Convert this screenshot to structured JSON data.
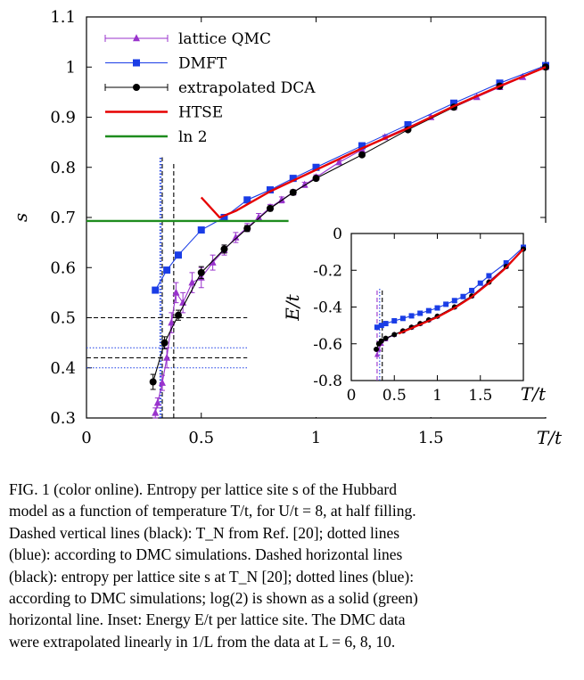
{
  "chart_data": [
    {
      "type": "line",
      "title": "",
      "xlabel": "T/t",
      "ylabel": "s",
      "xlim": [
        0,
        2
      ],
      "ylim": [
        0.3,
        1.1
      ],
      "xticks": [
        "0",
        "0.5",
        "1",
        "1.5"
      ],
      "yticks": [
        "0.3",
        "0.4",
        "0.5",
        "0.6",
        "0.7",
        "0.8",
        "0.9",
        "1",
        "1.1"
      ],
      "legend_position": "top-left",
      "series": [
        {
          "name": "lattice QMC",
          "color": "#9933cc",
          "marker": "triangle",
          "x": [
            0.3,
            0.31,
            0.33,
            0.35,
            0.37,
            0.39,
            0.42,
            0.46,
            0.5,
            0.55,
            0.6,
            0.65,
            0.7,
            0.75,
            0.8,
            0.85,
            0.9,
            0.95,
            1.0,
            1.1,
            1.2,
            1.3,
            1.4,
            1.5,
            1.6,
            1.7,
            1.8,
            1.9,
            2.0
          ],
          "y": [
            0.31,
            0.33,
            0.37,
            0.42,
            0.49,
            0.55,
            0.53,
            0.57,
            0.58,
            0.61,
            0.635,
            0.66,
            0.68,
            0.7,
            0.72,
            0.735,
            0.75,
            0.765,
            0.78,
            0.81,
            0.835,
            0.86,
            0.88,
            0.9,
            0.92,
            0.94,
            0.96,
            0.98,
            1.0
          ],
          "yerr": [
            0.01,
            0.01,
            0.015,
            0.02,
            0.02,
            0.02,
            0.02,
            0.02,
            0.02,
            0.015,
            0.01,
            0.01,
            0.008,
            0.008,
            0.006,
            0.006,
            0.005,
            0.005,
            0.005,
            0.004,
            0.004,
            0.004,
            0.003,
            0.003,
            0.003,
            0.003,
            0.003,
            0.003,
            0.002
          ]
        },
        {
          "name": "DMFT",
          "color": "#1a3de6",
          "marker": "square",
          "x": [
            0.3,
            0.35,
            0.4,
            0.5,
            0.6,
            0.7,
            0.8,
            0.9,
            1.0,
            1.2,
            1.4,
            1.6,
            1.8,
            2.0
          ],
          "y": [
            0.555,
            0.595,
            0.625,
            0.675,
            0.7,
            0.735,
            0.755,
            0.778,
            0.8,
            0.843,
            0.885,
            0.928,
            0.968,
            1.003
          ]
        },
        {
          "name": "extrapolated DCA",
          "color": "#000000",
          "marker": "circle",
          "x": [
            0.29,
            0.34,
            0.4,
            0.5,
            0.6,
            0.7,
            0.8,
            0.9,
            1.0,
            1.2,
            1.4,
            1.6,
            1.8,
            2.0
          ],
          "y": [
            0.372,
            0.45,
            0.505,
            0.59,
            0.637,
            0.678,
            0.718,
            0.75,
            0.778,
            0.825,
            0.875,
            0.92,
            0.962,
            1.0
          ],
          "yerr": [
            0.015,
            0.012,
            0.01,
            0.012,
            0.008,
            0.006,
            0.005,
            0.005,
            0.004,
            0.004,
            0.003,
            0.003,
            0.003,
            0.002
          ]
        },
        {
          "name": "HTSE",
          "color": "#e60000",
          "marker": "none",
          "x": [
            0.5,
            0.58,
            0.65,
            0.8,
            1.0,
            1.2,
            1.4,
            1.6,
            1.8,
            2.0
          ],
          "y": [
            0.74,
            0.7,
            0.713,
            0.752,
            0.795,
            0.838,
            0.878,
            0.922,
            0.962,
            1.0
          ]
        },
        {
          "name": "ln 2",
          "color": "#1e8c1e",
          "marker": "none",
          "x": [
            0.0,
            0.88
          ],
          "y": [
            0.693,
            0.693
          ]
        }
      ],
      "reference_lines": [
        {
          "orientation": "vertical",
          "style": "dashed",
          "color": "#000000",
          "x": 0.33,
          "y_range": [
            0.3,
            0.82
          ]
        },
        {
          "orientation": "vertical",
          "style": "dashed",
          "color": "#000000",
          "x": 0.38,
          "y_range": [
            0.3,
            0.81
          ]
        },
        {
          "orientation": "vertical",
          "style": "dotted",
          "color": "#1a3de6",
          "x": 0.32,
          "y_range": [
            0.3,
            0.82
          ]
        },
        {
          "orientation": "vertical",
          "style": "dotted",
          "color": "#1a3de6",
          "x": 0.325,
          "y_range": [
            0.3,
            0.82
          ]
        },
        {
          "orientation": "horizontal",
          "style": "dashed",
          "color": "#000000",
          "y": 0.5,
          "x_range": [
            0.0,
            0.7
          ]
        },
        {
          "orientation": "horizontal",
          "style": "dashed",
          "color": "#000000",
          "y": 0.42,
          "x_range": [
            0.0,
            0.7
          ]
        },
        {
          "orientation": "horizontal",
          "style": "dotted",
          "color": "#1a3de6",
          "y": 0.44,
          "x_range": [
            0.0,
            0.7
          ]
        },
        {
          "orientation": "horizontal",
          "style": "dotted",
          "color": "#1a3de6",
          "y": 0.4,
          "x_range": [
            0.0,
            0.7
          ]
        }
      ]
    },
    {
      "type": "line",
      "title": "",
      "xlabel": "T/t",
      "ylabel": "E/t",
      "xlim": [
        0,
        2
      ],
      "ylim": [
        -0.8,
        0
      ],
      "xticks": [
        "0",
        "0.5",
        "1",
        "1.5"
      ],
      "yticks": [
        "0",
        "-0.2",
        "-0.4",
        "-0.6",
        "-0.8"
      ],
      "series": [
        {
          "name": "lattice QMC",
          "color": "#9933cc",
          "marker": "triangle",
          "x": [
            0.3,
            0.32,
            0.35,
            0.4,
            0.5,
            0.6,
            0.7,
            0.8,
            0.9,
            1.0,
            1.2,
            1.4,
            1.6,
            1.8,
            2.0
          ],
          "y": [
            -0.66,
            -0.63,
            -0.6,
            -0.575,
            -0.55,
            -0.53,
            -0.51,
            -0.49,
            -0.47,
            -0.45,
            -0.4,
            -0.34,
            -0.26,
            -0.18,
            -0.08
          ]
        },
        {
          "name": "DMFT",
          "color": "#1a3de6",
          "marker": "square",
          "x": [
            0.3,
            0.35,
            0.4,
            0.5,
            0.6,
            0.7,
            0.8,
            0.9,
            1.0,
            1.1,
            1.2,
            1.3,
            1.4,
            1.5,
            1.6,
            1.8,
            2.0
          ],
          "y": [
            -0.51,
            -0.5,
            -0.49,
            -0.475,
            -0.462,
            -0.448,
            -0.434,
            -0.42,
            -0.405,
            -0.385,
            -0.365,
            -0.343,
            -0.31,
            -0.27,
            -0.23,
            -0.16,
            -0.075
          ]
        },
        {
          "name": "extrapolated DCA",
          "color": "#000000",
          "marker": "circle",
          "x": [
            0.29,
            0.32,
            0.35,
            0.4,
            0.5,
            0.6,
            0.7,
            0.8,
            0.9,
            1.0,
            1.2,
            1.4,
            1.6,
            1.8,
            2.0
          ],
          "y": [
            -0.63,
            -0.6,
            -0.585,
            -0.57,
            -0.55,
            -0.53,
            -0.51,
            -0.49,
            -0.47,
            -0.45,
            -0.4,
            -0.34,
            -0.265,
            -0.18,
            -0.085
          ]
        },
        {
          "name": "HTSE",
          "color": "#e60000",
          "marker": "none",
          "x": [
            0.55,
            0.8,
            1.0,
            1.2,
            1.4,
            1.6,
            1.8,
            2.0
          ],
          "y": [
            -0.545,
            -0.495,
            -0.455,
            -0.405,
            -0.345,
            -0.27,
            -0.185,
            -0.085
          ]
        }
      ],
      "reference_lines": [
        {
          "orientation": "vertical",
          "style": "dashed",
          "color": "#9933cc",
          "x": 0.3,
          "y_range": [
            -0.8,
            -0.3
          ]
        },
        {
          "orientation": "vertical",
          "style": "dotted",
          "color": "#1a3de6",
          "x": 0.33,
          "y_range": [
            -0.8,
            -0.3
          ]
        },
        {
          "orientation": "vertical",
          "style": "dashed",
          "color": "#000000",
          "x": 0.36,
          "y_range": [
            -0.8,
            -0.3
          ]
        }
      ]
    }
  ],
  "caption": {
    "lines": [
      "FIG. 1 (color online).    Entropy per lattice site s of the Hubbard",
      "model as a function of temperature T/t, for U/t = 8, at half filling.",
      "Dashed vertical lines (black): T_N from Ref. [20]; dotted lines",
      "(blue): according to DMC simulations. Dashed horizontal lines",
      "(black): entropy per lattice site s at T_N [20]; dotted lines (blue):",
      "according to DMC simulations; log(2) is shown as a solid (green)",
      "horizontal line. Inset: Energy E/t per lattice site. The DMC data",
      "were extrapolated linearly in 1/L from the data at L = 6, 8, 10."
    ]
  }
}
